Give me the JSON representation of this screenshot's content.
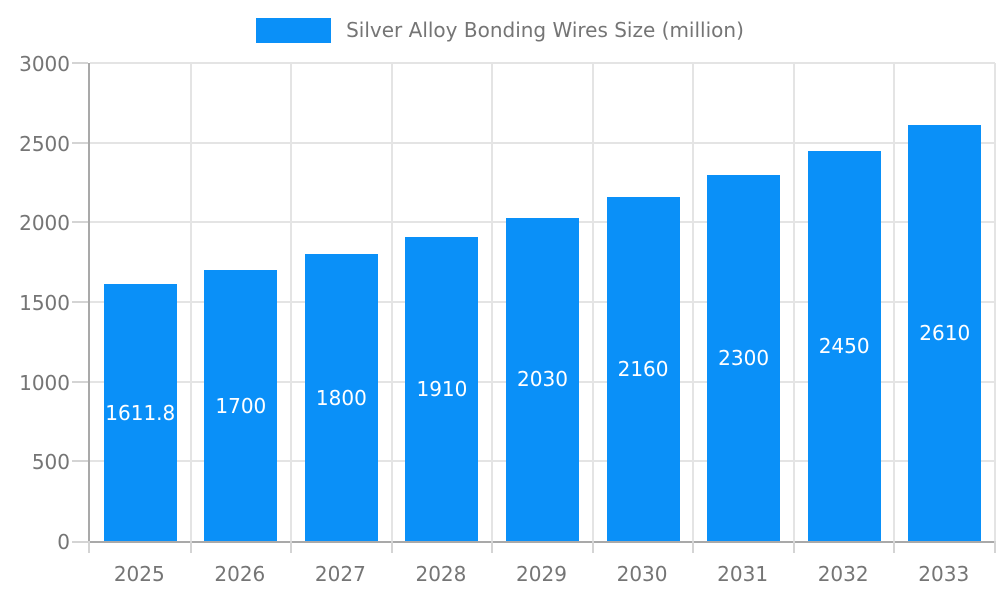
{
  "chart_data": {
    "type": "bar",
    "title": "Silver Alloy Bonding Wires Size (million)",
    "legend": {
      "label": "Silver Alloy Bonding Wires Size (million)",
      "position": "top",
      "marker": "rectangle"
    },
    "categories": [
      "2025",
      "2026",
      "2027",
      "2028",
      "2029",
      "2030",
      "2031",
      "2032",
      "2033"
    ],
    "values": [
      1611.8,
      1700,
      1800,
      1910,
      2030,
      2160,
      2300,
      2450,
      2610
    ],
    "value_labels": [
      "1611.8",
      "1700",
      "1800",
      "1910",
      "2030",
      "2160",
      "2300",
      "2450",
      "2610"
    ],
    "xlabel": "",
    "ylabel": "",
    "ylim": [
      0,
      3000
    ],
    "ytick_step": 500,
    "ytick_labels": [
      "0",
      "500",
      "1000",
      "1500",
      "2000",
      "2500",
      "3000"
    ],
    "grid": true,
    "grid_vertical": true,
    "value_label_position": "inside-center",
    "colors": {
      "bar": "#0a90f8",
      "grid": "#e4e4e4",
      "axis": "#a9a9a9",
      "tick": "#d4d4d4",
      "text": "#757575",
      "value_label": "#ffffff",
      "background": "#ffffff"
    }
  }
}
